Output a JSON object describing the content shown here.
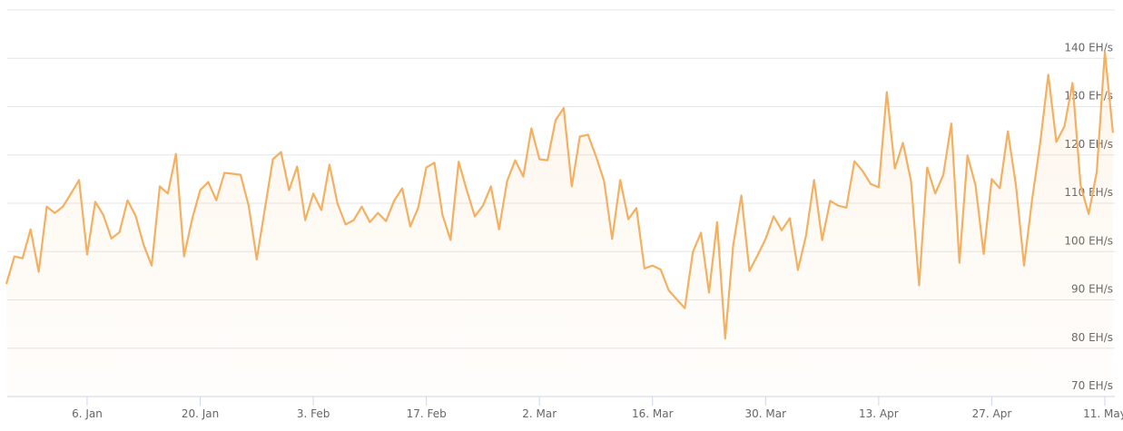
{
  "chart_data": {
    "type": "line",
    "categories": [
      null,
      null,
      null,
      null,
      null,
      null,
      null,
      null,
      null,
      null,
      "6. Jan",
      null,
      null,
      null,
      null,
      null,
      null,
      null,
      null,
      null,
      null,
      null,
      null,
      null,
      "20. Jan",
      null,
      null,
      null,
      null,
      null,
      null,
      null,
      null,
      null,
      null,
      null,
      null,
      null,
      "3. Feb",
      null,
      null,
      null,
      null,
      null,
      null,
      null,
      null,
      null,
      null,
      null,
      null,
      null,
      "17. Feb",
      null,
      null,
      null,
      null,
      null,
      null,
      null,
      null,
      null,
      null,
      null,
      null,
      null,
      "2. Mar",
      null,
      null,
      null,
      null,
      null,
      null,
      null,
      null,
      null,
      null,
      null,
      null,
      null,
      "16. Mar",
      null,
      null,
      null,
      null,
      null,
      null,
      null,
      null,
      null,
      null,
      null,
      null,
      null,
      "30. Mar",
      null,
      null,
      null,
      null,
      null,
      null,
      null,
      null,
      null,
      null,
      null,
      null,
      null,
      "13. Apr",
      null,
      null,
      null,
      null,
      null,
      null,
      null,
      null,
      null,
      null,
      null,
      null,
      null,
      "27. Apr",
      null,
      null,
      null,
      null,
      null,
      null,
      null,
      null,
      null,
      null,
      null,
      null,
      null,
      "11. May",
      null
    ],
    "values": [
      93.3,
      99,
      98.6,
      104.6,
      95.8,
      109.3,
      108,
      109.3,
      112,
      114.8,
      99.4,
      110.3,
      107.6,
      102.7,
      104,
      110.6,
      107.4,
      101.4,
      97.1,
      113.5,
      112,
      120.2,
      99,
      106.7,
      112.7,
      114.4,
      110.6,
      116.3,
      116.1,
      115.9,
      109.5,
      98.4,
      108.8,
      119.1,
      120.6,
      112.7,
      117.6,
      106.5,
      112,
      108.6,
      118,
      109.9,
      105.6,
      106.5,
      109.3,
      106.1,
      108,
      106.3,
      110.5,
      113.1,
      105.2,
      109.1,
      117.4,
      118.4,
      107.6,
      102.4,
      118.6,
      112.7,
      107.3,
      109.5,
      113.5,
      104.6,
      114.6,
      118.9,
      115.5,
      125.5,
      119.1,
      118.9,
      127.2,
      129.7,
      113.5,
      123.8,
      124.2,
      119.7,
      114.6,
      102.6,
      114.8,
      106.7,
      109,
      96.5,
      97.1,
      96.3,
      92,
      90.1,
      88.3,
      99.9,
      103.9,
      91.5,
      106.1,
      82,
      101.4,
      111.6,
      96,
      99.2,
      102.6,
      107.3,
      104.4,
      106.9,
      96.2,
      103.3,
      114.8,
      102.4,
      110.5,
      109.5,
      109.1,
      118.7,
      116.7,
      114,
      113.3,
      133,
      117.2,
      122.5,
      114.6,
      93,
      117.4,
      112,
      115.9,
      126.5,
      97.7,
      119.9,
      113.7,
      99.5,
      115,
      113.1,
      124.9,
      113.7,
      97.1,
      110.8,
      122.5,
      136.6,
      122.7,
      125.9,
      134.9,
      113.7,
      107.8,
      116.5,
      141.3,
      124.6
    ],
    "color": "#f4b060",
    "ylim": [
      70,
      150
    ],
    "yticks": [
      {
        "value": 70,
        "label": "70 EH/s"
      },
      {
        "value": 80,
        "label": "80 EH/s"
      },
      {
        "value": 90,
        "label": "90 EH/s"
      },
      {
        "value": 100,
        "label": "100 EH/s"
      },
      {
        "value": 110,
        "label": "110 EH/s"
      },
      {
        "value": 120,
        "label": "120 EH/s"
      },
      {
        "value": 130,
        "label": "130 EH/s"
      },
      {
        "value": 140,
        "label": "140 EH/s"
      }
    ],
    "grid": true
  }
}
